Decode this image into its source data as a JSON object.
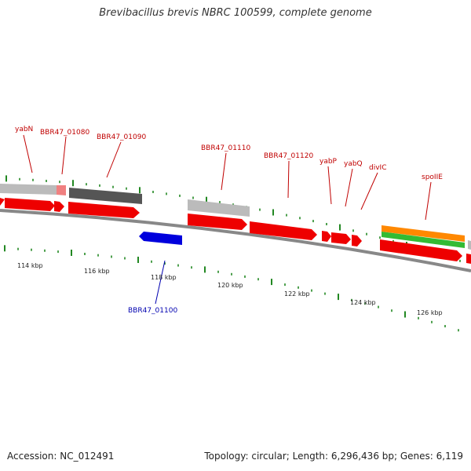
{
  "title": "Brevibacillus brevis NBRC 100599, complete genome",
  "footer": {
    "accession": "Accession: NC_012491",
    "topology": "Topology: circular; Length: 6,296,436 bp; Genes: 6,119"
  },
  "colors": {
    "forward_gene": "#ee0000",
    "reverse_gene": "#0000dd",
    "feature_grey": "#bbbbbb",
    "feature_dark": "#555555",
    "feature_orange": "#ff8800",
    "feature_green": "#33bb33",
    "label_forward": "#c00000",
    "label_reverse": "#0000b0",
    "tick_green": "#228822"
  },
  "gene_labels": [
    {
      "text": "yabN",
      "strand": "forward"
    },
    {
      "text": "BBR47_01080",
      "strand": "forward"
    },
    {
      "text": "BBR47_01090",
      "strand": "forward"
    },
    {
      "text": "BBR47_01110",
      "strand": "forward"
    },
    {
      "text": "BBR47_01120",
      "strand": "forward"
    },
    {
      "text": "yabP",
      "strand": "forward"
    },
    {
      "text": "yabQ",
      "strand": "forward"
    },
    {
      "text": "divIC",
      "strand": "forward"
    },
    {
      "text": "spoIIE",
      "strand": "forward"
    },
    {
      "text": "BBR47_01100",
      "strand": "reverse"
    }
  ],
  "scale_labels": [
    "114 kbp",
    "116 kbp",
    "118 kbp",
    "120 kbp",
    "122 kbp",
    "124 kbp",
    "126 kbp"
  ]
}
